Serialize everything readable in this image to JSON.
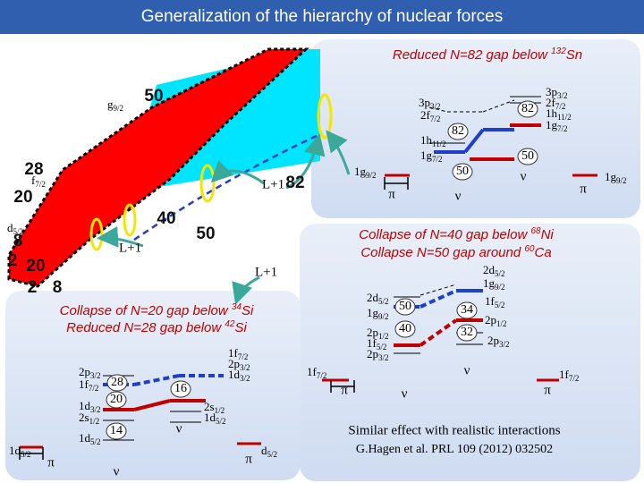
{
  "title": "Generalization of the hierarchy of nuclear forces",
  "nuclear_chart": {
    "magic": [
      "50",
      "28",
      "20",
      "82",
      "40",
      "50",
      "8",
      "2",
      "20",
      "2",
      "8"
    ],
    "orbits": [
      {
        "t": "g",
        "s": "9/2"
      },
      {
        "t": "f",
        "s": "7/2"
      },
      {
        "t": "d",
        "s": "5/2"
      }
    ],
    "lplus": [
      "L+1",
      "L+1",
      "L+1"
    ]
  },
  "captions": [
    {
      "pre": "Reduced N=82 gap below ",
      "sup": "132",
      "post": "Sn"
    },
    {
      "pre": "Collapse of N=40 gap below ",
      "sup": "68",
      "post": "Ni"
    },
    {
      "pre": "Collapse N=50 gap around ",
      "sup": "60",
      "post": "Ca"
    },
    {
      "pre": "Collapse of N=20 gap below ",
      "sup": "34",
      "post": "Si"
    },
    {
      "pre": "Reduced N=28 gap below ",
      "sup": "42",
      "post": "Si"
    }
  ],
  "panels": [
    {
      "levels": [
        {
          "t": "3p",
          "s": "3/2"
        },
        {
          "t": "2f",
          "s": "7/2"
        },
        {
          "t": "1h",
          "s": "11/2"
        },
        {
          "t": "1g",
          "s": "7/2"
        },
        {
          "t": "1g",
          "s": "9/2"
        },
        {
          "t": "3p",
          "s": "3/2"
        },
        {
          "t": "2f",
          "s": "7/2"
        },
        {
          "t": "1h",
          "s": "11/2"
        },
        {
          "t": "1g",
          "s": "7/2"
        },
        {
          "t": "1g",
          "s": "9/2"
        }
      ],
      "gaps": [
        "82",
        "50",
        "82",
        "50"
      ],
      "symbols": [
        "π",
        "ν",
        "ν",
        "π"
      ]
    },
    {
      "levels": [
        {
          "t": "2d",
          "s": "5/2"
        },
        {
          "t": "1g",
          "s": "9/2"
        },
        {
          "t": "2p",
          "s": "1/2"
        },
        {
          "t": "1f",
          "s": "5/2"
        },
        {
          "t": "2p",
          "s": "3/2"
        },
        {
          "t": "2d",
          "s": "5/2"
        },
        {
          "t": "1g",
          "s": "9/2"
        },
        {
          "t": "1f",
          "s": "5/2"
        },
        {
          "t": "2p",
          "s": "1/2"
        },
        {
          "t": "2p",
          "s": "3/2"
        },
        {
          "t": "1f",
          "s": "7/2"
        },
        {
          "t": "1f",
          "s": "7/2"
        }
      ],
      "gaps": [
        "50",
        "40",
        "34",
        "32"
      ],
      "symbols": [
        "π",
        "ν",
        "ν",
        "π"
      ]
    },
    {
      "levels": [
        {
          "t": "2p",
          "s": "3/2"
        },
        {
          "t": "1f",
          "s": "7/2"
        },
        {
          "t": "1d",
          "s": "3/2"
        },
        {
          "t": "2s",
          "s": "1/2"
        },
        {
          "t": "1d",
          "s": "5/2"
        },
        {
          "t": "1d",
          "s": "5/2"
        },
        {
          "t": "1f",
          "s": "7/2"
        },
        {
          "t": "2p",
          "s": "3/2"
        },
        {
          "t": "1d",
          "s": "3/2"
        },
        {
          "t": "2s",
          "s": "1/2"
        },
        {
          "t": "1d",
          "s": "5/2"
        },
        {
          "t": "d",
          "s": "5/2"
        }
      ],
      "gaps": [
        "28",
        "20",
        "14",
        "16"
      ],
      "symbols": [
        "π",
        "ν",
        "ν",
        "π"
      ]
    }
  ],
  "footer": [
    "Similar effect with realistic interactions",
    "G.Hagen et al. PRL 109 (2012) 032502"
  ]
}
